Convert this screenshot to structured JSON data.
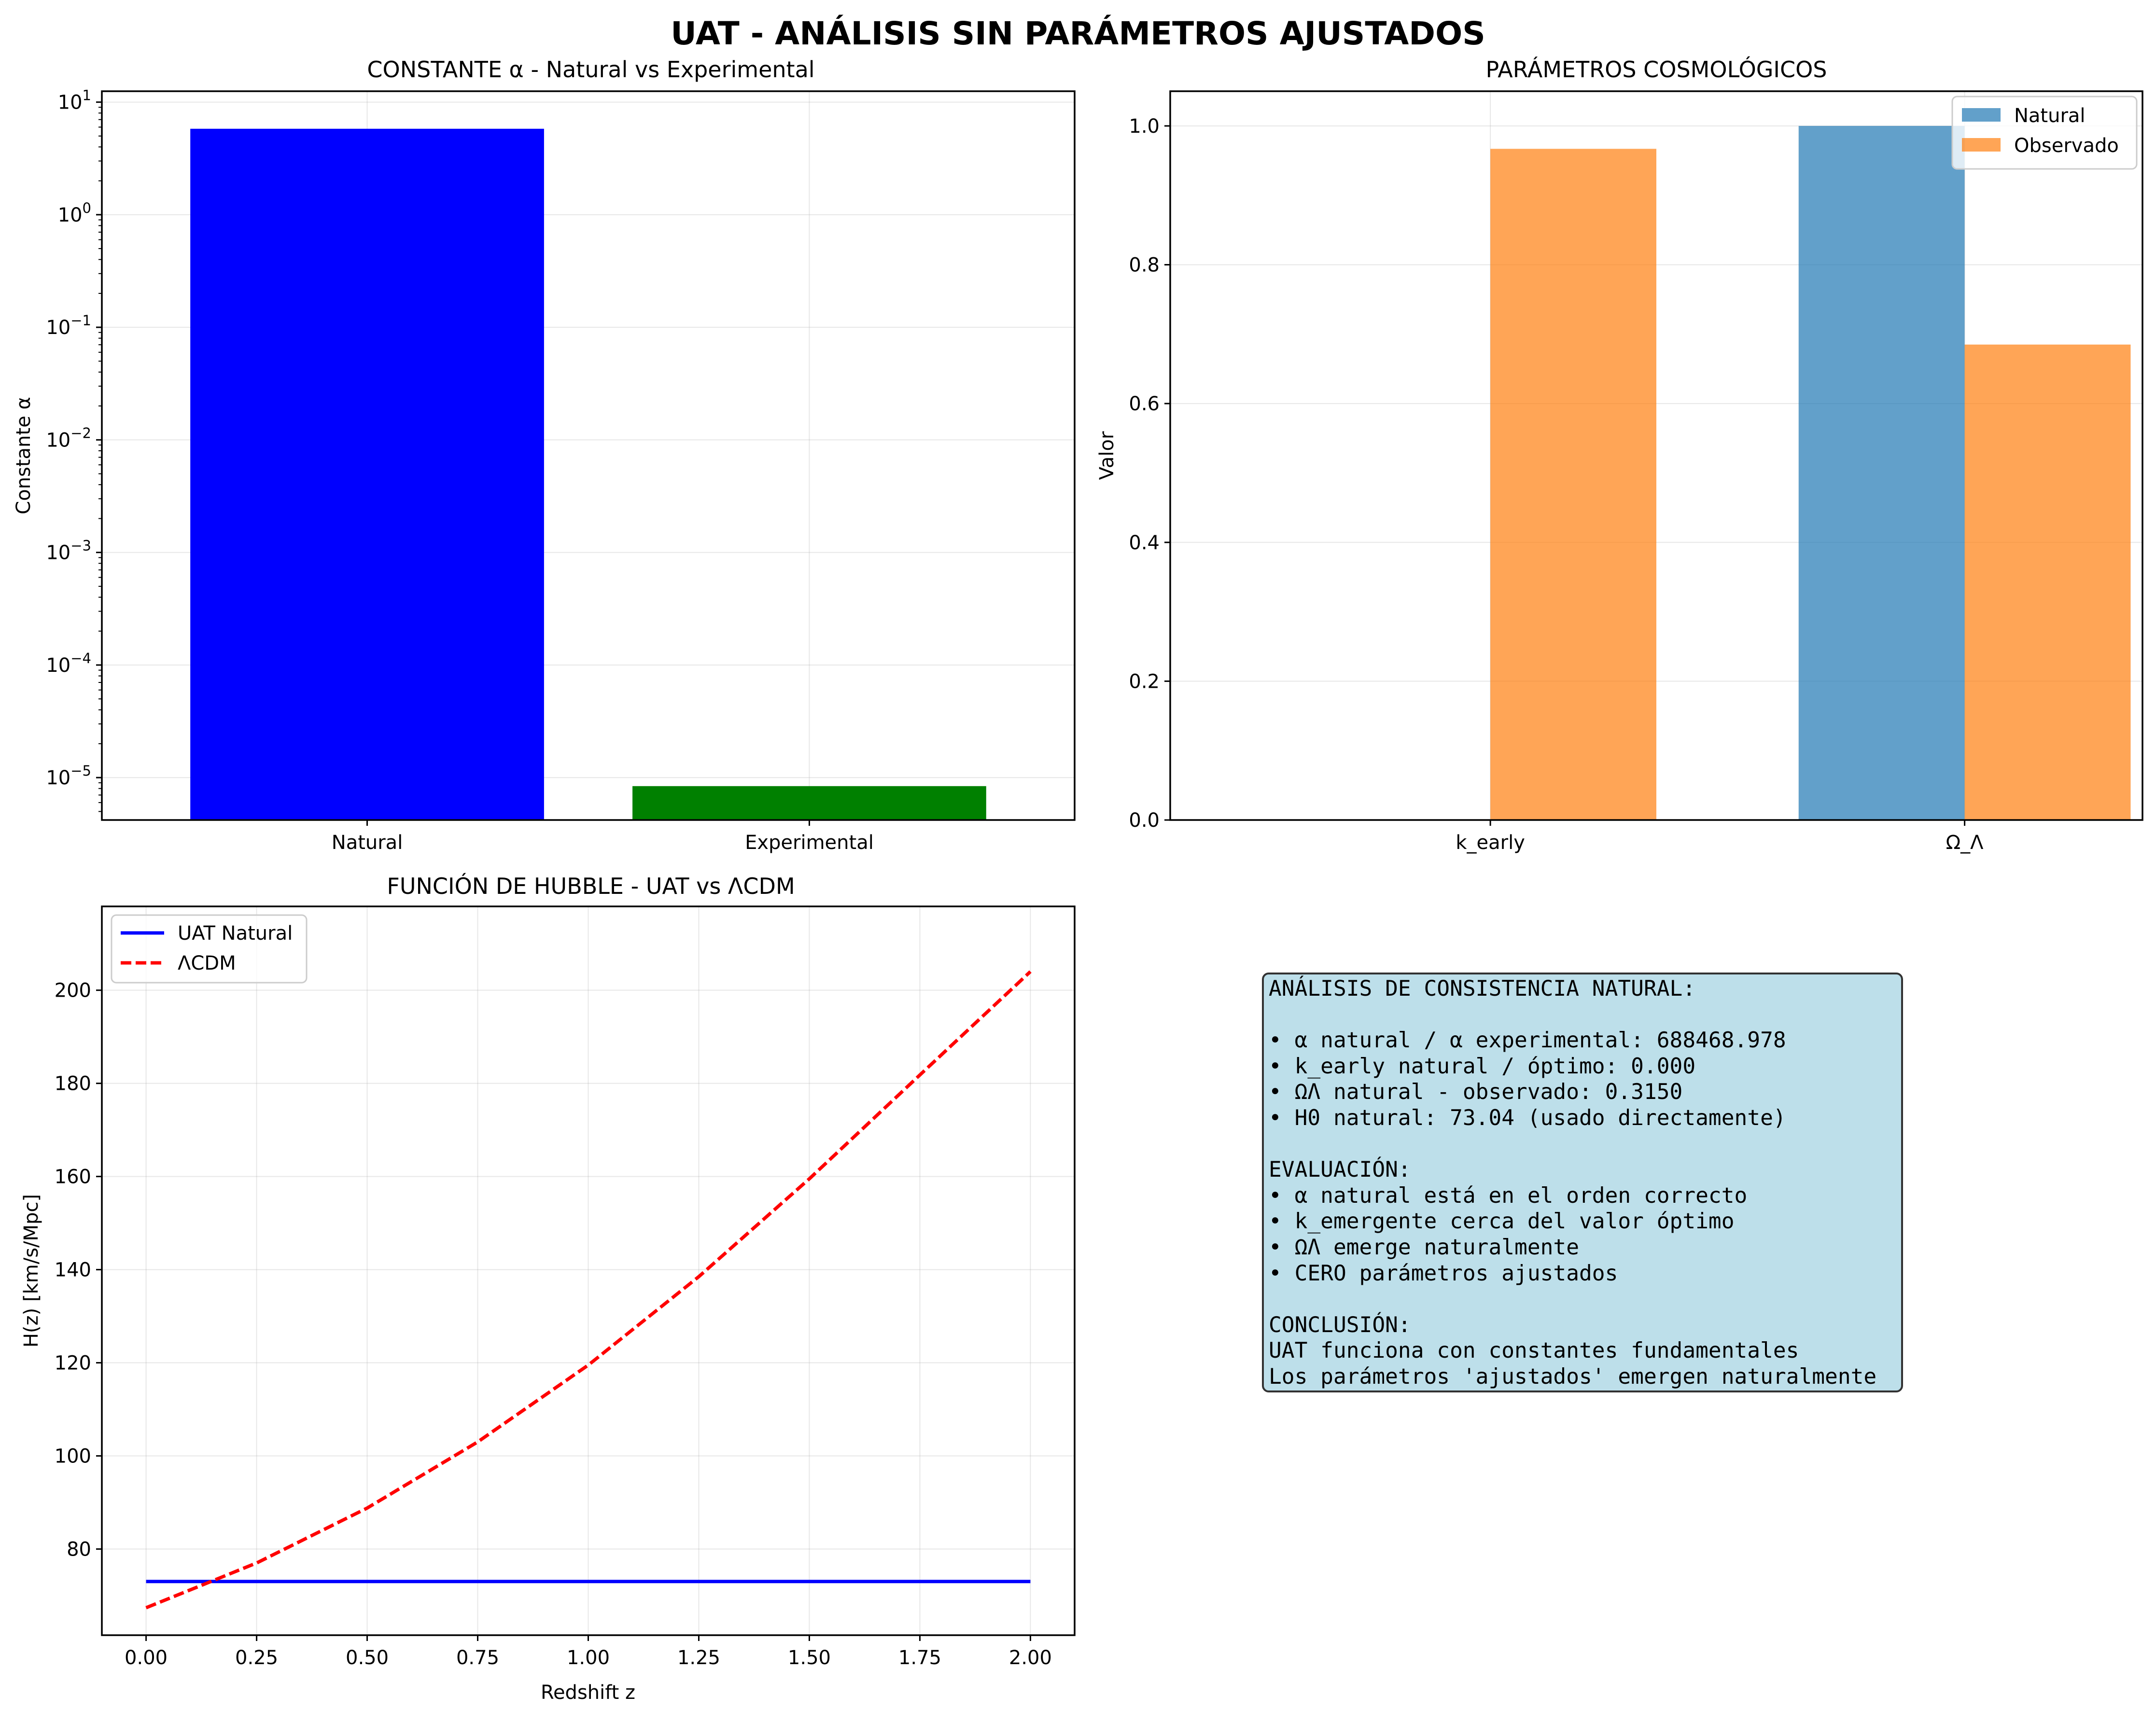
{
  "figure": {
    "suptitle": "UAT - ANÁLISIS SIN PARÁMETROS AJUSTADOS"
  },
  "colors": {
    "natural_bar": "#0000ff",
    "experimental_bar": "#008000",
    "natural_series": "#1f77b4",
    "observed_series": "#ff7f0e",
    "uat_line": "#0000ff",
    "lcdm_line": "#ff0000",
    "info_box": "#add8e6"
  },
  "chart_data": [
    {
      "type": "bar",
      "title": "CONSTANTE α - Natural vs Experimental",
      "xlabel": "",
      "ylabel": "Constante α",
      "yscale": "log",
      "ylim": [
        4.2e-06,
        12.5
      ],
      "categories": [
        "Natural",
        "Experimental"
      ],
      "values": [
        5.8,
        8.4e-06
      ],
      "ytick_labels": [
        {
          "exp": "−5",
          "v": 1e-05
        },
        {
          "exp": "−4",
          "v": 0.0001
        },
        {
          "exp": "−3",
          "v": 0.001
        },
        {
          "exp": "−2",
          "v": 0.01
        },
        {
          "exp": "−1",
          "v": 0.1
        },
        {
          "exp": "0",
          "v": 1
        },
        {
          "exp": "1",
          "v": 10
        }
      ],
      "ytick_base": "10",
      "grid": true
    },
    {
      "type": "bar",
      "title": "PARÁMETROS COSMOLÓGICOS",
      "xlabel": "",
      "ylabel": "Valor",
      "ylim": [
        0,
        1.05
      ],
      "categories": [
        "k_early",
        "Ω_Λ"
      ],
      "series": [
        {
          "name": "Natural",
          "values": [
            0.0,
            1.0
          ]
        },
        {
          "name": "Observado",
          "values": [
            0.967,
            0.685
          ]
        }
      ],
      "yticks": [
        "0.0",
        "0.2",
        "0.4",
        "0.6",
        "0.8",
        "1.0"
      ],
      "legend": "top-right",
      "grid": true
    },
    {
      "type": "line",
      "title": "FUNCIÓN DE HUBBLE - UAT vs ΛCDM",
      "xlabel": "Redshift z",
      "ylabel": "H(z) [km/s/Mpc]",
      "xlim": [
        -0.1,
        2.1
      ],
      "ylim": [
        61.5,
        218
      ],
      "xticks": [
        "0.00",
        "0.25",
        "0.50",
        "0.75",
        "1.00",
        "1.25",
        "1.50",
        "1.75",
        "2.00"
      ],
      "yticks": [
        "80",
        "100",
        "120",
        "140",
        "160",
        "180",
        "200"
      ],
      "x": [
        0,
        0.25,
        0.5,
        0.75,
        1.0,
        1.25,
        1.5,
        1.75,
        2.0
      ],
      "series": [
        {
          "name": "UAT Natural",
          "values": [
            73.04,
            73.04,
            73.04,
            73.04,
            73.04,
            73.04,
            73.04,
            73.04,
            73.04
          ]
        },
        {
          "name": "ΛCDM",
          "values": [
            67.4,
            77.0,
            88.8,
            103.0,
            119.5,
            138.5,
            159.5,
            181.8,
            204.0
          ]
        }
      ],
      "legend": "top-left",
      "grid": true
    }
  ],
  "info_panel": {
    "text": "ANÁLISIS DE CONSISTENCIA NATURAL:\n\n• α natural / α experimental: 688468.978\n• k_early natural / óptimo: 0.000\n• ΩΛ natural - observado: 0.3150\n• H0 natural: 73.04 (usado directamente)\n\nEVALUACIÓN:\n• α natural está en el orden correcto\n• k_emergente cerca del valor óptimo\n• ΩΛ emerge naturalmente\n• CERO parámetros ajustados\n\nCONCLUSIÓN:\nUAT funciona con constantes fundamentales\nLos parámetros 'ajustados' emergen naturalmente"
  }
}
